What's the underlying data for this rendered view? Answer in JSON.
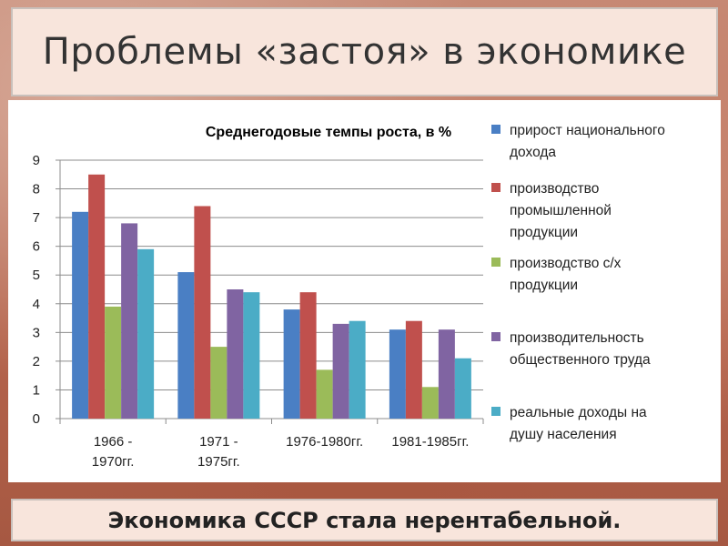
{
  "slide": {
    "title": "Проблемы «застоя» в экономике",
    "footer": "Экономика СССР стала нерентабельной."
  },
  "chart_data": {
    "type": "bar",
    "title": "Среднегодовые темпы роста, в %",
    "xlabel": "",
    "ylabel": "",
    "ylim": [
      0,
      9
    ],
    "yticks": [
      "0",
      "1",
      "2",
      "3",
      "4",
      "5",
      "6",
      "7",
      "8",
      "9"
    ],
    "grid": true,
    "legend_position": "right",
    "categories": [
      [
        "1966 -",
        "1970гг."
      ],
      [
        "1971 -",
        "1975гг."
      ],
      [
        "1976-1980гг."
      ],
      [
        "1981-1985гг."
      ]
    ],
    "series": [
      {
        "name": [
          "прирост национального",
          "дохода"
        ],
        "color": "#4a7fc4",
        "values": [
          7.2,
          5.1,
          3.8,
          3.1
        ]
      },
      {
        "name": [
          "производство",
          "промышленной",
          "продукции"
        ],
        "color": "#c0504d",
        "values": [
          8.5,
          7.4,
          4.4,
          3.4
        ]
      },
      {
        "name": [
          "производство с/х",
          "продукции"
        ],
        "color": "#9bbb59",
        "values": [
          3.9,
          2.5,
          1.7,
          1.1
        ]
      },
      {
        "name": [
          "производительность",
          "общественного труда"
        ],
        "color": "#8064a2",
        "values": [
          6.8,
          4.5,
          3.3,
          3.1
        ]
      },
      {
        "name": [
          "реальные доходы на",
          "душу населения"
        ],
        "color": "#4bacc6",
        "values": [
          5.9,
          4.4,
          3.4,
          2.1
        ]
      }
    ]
  }
}
